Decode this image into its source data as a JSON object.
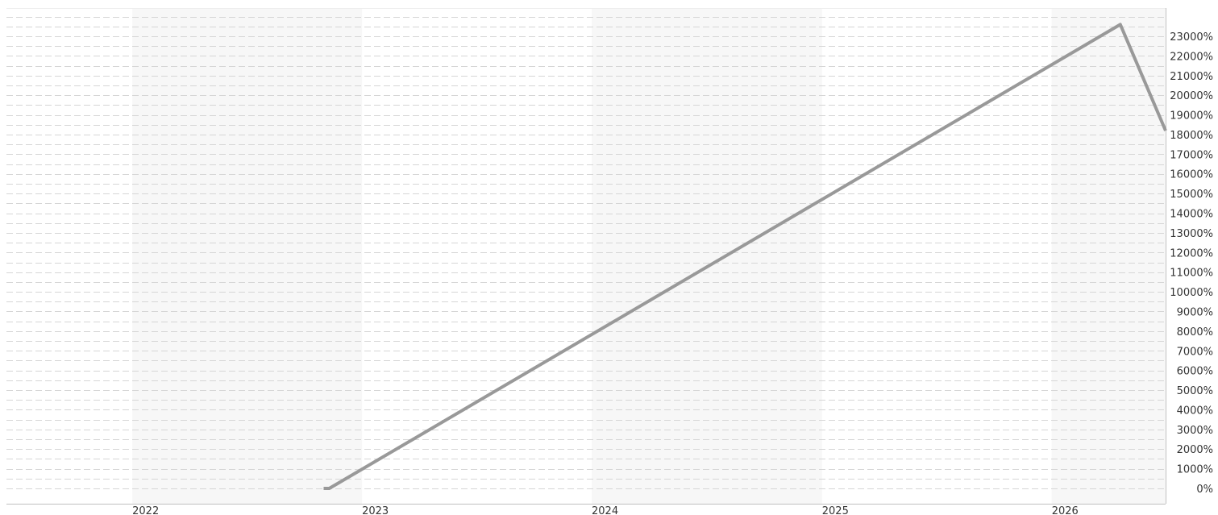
{
  "chart_data": {
    "type": "line",
    "title": "",
    "xlabel": "",
    "ylabel": "",
    "x_ticks": [
      "2022",
      "2023",
      "2024",
      "2025",
      "2026"
    ],
    "y_ticks": [
      "0%",
      "1000%",
      "2000%",
      "3000%",
      "4000%",
      "5000%",
      "6000%",
      "7000%",
      "8000%",
      "9000%",
      "10000%",
      "11000%",
      "12000%",
      "13000%",
      "14000%",
      "15000%",
      "16000%",
      "17000%",
      "18000%",
      "19000%",
      "20000%",
      "21000%",
      "22000%",
      "23000%"
    ],
    "xlim": [
      "2021-06-15",
      "2026-07-01"
    ],
    "ylim": [
      0,
      24000
    ],
    "grid": true,
    "series": [
      {
        "x": [
          "2022-11-01",
          "2022-11-10",
          "2026-04-20",
          "2026-07-01"
        ],
        "y": [
          0,
          0,
          23600,
          18200
        ]
      }
    ],
    "colors": {
      "line": "#999999",
      "band": "#f7f7f7",
      "grid": "#d6d6d6",
      "axis": "#c0c0c0",
      "text": "#333333"
    }
  }
}
